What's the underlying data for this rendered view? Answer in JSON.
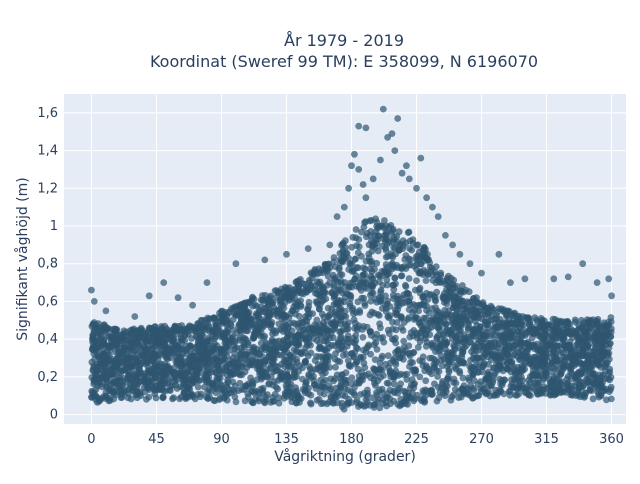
{
  "chart_data": {
    "type": "scatter",
    "title_line1": "År 1979 - 2019",
    "title_line2": "Koordinat (Sweref 99 TM): E 358099, N 6196070",
    "xlabel": "Vågriktning (grader)",
    "ylabel": "Signifikant våghöjd (m)",
    "xlim": [
      -19,
      370
    ],
    "ylim": [
      -0.05,
      1.7
    ],
    "x_ticks": [
      0,
      45,
      90,
      135,
      180,
      225,
      270,
      315,
      360
    ],
    "x_tick_labels": [
      "0",
      "45",
      "90",
      "135",
      "180",
      "225",
      "270",
      "315",
      "360"
    ],
    "y_ticks": [
      0,
      0.2,
      0.4,
      0.6,
      0.8,
      1.0,
      1.2,
      1.4,
      1.6
    ],
    "y_tick_labels": [
      "0",
      "0,2",
      "0,4",
      "0,6",
      "0,8",
      "1",
      "1,2",
      "1,4",
      "1,6"
    ],
    "grid": true,
    "colors": {
      "background": "#e5ecf6",
      "grid": "#ffffff",
      "marker": "#2e5570",
      "text": "#2a3f5f"
    },
    "envelope": {
      "x": [
        0,
        20,
        45,
        70,
        90,
        110,
        135,
        150,
        165,
        180,
        195,
        210,
        225,
        240,
        255,
        270,
        300,
        330,
        360
      ],
      "upper": [
        0.5,
        0.45,
        0.47,
        0.48,
        0.55,
        0.62,
        0.68,
        0.75,
        0.82,
        0.98,
        1.05,
        1.02,
        0.95,
        0.78,
        0.7,
        0.6,
        0.52,
        0.5,
        0.52
      ],
      "lower": [
        0.06,
        0.08,
        0.08,
        0.08,
        0.07,
        0.06,
        0.06,
        0.05,
        0.04,
        0.02,
        0.02,
        0.04,
        0.06,
        0.07,
        0.08,
        0.09,
        0.1,
        0.1,
        0.07
      ]
    },
    "outlier_points": [
      {
        "x": 0,
        "y": 0.66
      },
      {
        "x": 2,
        "y": 0.6
      },
      {
        "x": 10,
        "y": 0.55
      },
      {
        "x": 30,
        "y": 0.52
      },
      {
        "x": 40,
        "y": 0.63
      },
      {
        "x": 50,
        "y": 0.7
      },
      {
        "x": 60,
        "y": 0.62
      },
      {
        "x": 70,
        "y": 0.58
      },
      {
        "x": 80,
        "y": 0.7
      },
      {
        "x": 100,
        "y": 0.8
      },
      {
        "x": 120,
        "y": 0.82
      },
      {
        "x": 135,
        "y": 0.85
      },
      {
        "x": 150,
        "y": 0.88
      },
      {
        "x": 165,
        "y": 0.9
      },
      {
        "x": 170,
        "y": 1.05
      },
      {
        "x": 175,
        "y": 1.1
      },
      {
        "x": 178,
        "y": 1.2
      },
      {
        "x": 180,
        "y": 1.32
      },
      {
        "x": 182,
        "y": 1.38
      },
      {
        "x": 185,
        "y": 1.3
      },
      {
        "x": 188,
        "y": 1.22
      },
      {
        "x": 190,
        "y": 1.15
      },
      {
        "x": 185,
        "y": 1.53
      },
      {
        "x": 190,
        "y": 1.52
      },
      {
        "x": 202,
        "y": 1.62
      },
      {
        "x": 205,
        "y": 1.47
      },
      {
        "x": 208,
        "y": 1.49
      },
      {
        "x": 212,
        "y": 1.57
      },
      {
        "x": 200,
        "y": 1.35
      },
      {
        "x": 215,
        "y": 1.28
      },
      {
        "x": 218,
        "y": 1.32
      },
      {
        "x": 225,
        "y": 1.2
      },
      {
        "x": 228,
        "y": 1.36
      },
      {
        "x": 232,
        "y": 1.15
      },
      {
        "x": 236,
        "y": 1.1
      },
      {
        "x": 240,
        "y": 1.05
      },
      {
        "x": 245,
        "y": 0.95
      },
      {
        "x": 250,
        "y": 0.9
      },
      {
        "x": 255,
        "y": 0.85
      },
      {
        "x": 262,
        "y": 0.8
      },
      {
        "x": 270,
        "y": 0.75
      },
      {
        "x": 282,
        "y": 0.85
      },
      {
        "x": 290,
        "y": 0.7
      },
      {
        "x": 300,
        "y": 0.72
      },
      {
        "x": 320,
        "y": 0.72
      },
      {
        "x": 330,
        "y": 0.73
      },
      {
        "x": 340,
        "y": 0.8
      },
      {
        "x": 350,
        "y": 0.7
      },
      {
        "x": 358,
        "y": 0.72
      },
      {
        "x": 360,
        "y": 0.63
      },
      {
        "x": 195,
        "y": 1.25
      },
      {
        "x": 210,
        "y": 1.4
      },
      {
        "x": 220,
        "y": 1.25
      }
    ]
  }
}
